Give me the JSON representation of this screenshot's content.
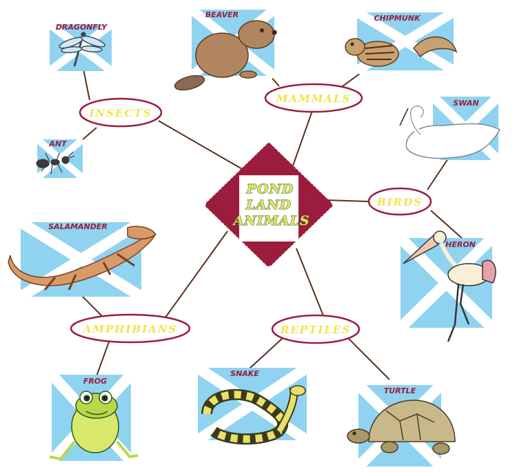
{
  "center": {
    "lines": [
      "POND",
      "LAND",
      "ANIMALS"
    ]
  },
  "categories": {
    "insects": "INSECTS",
    "mammals": "MAMMALS",
    "birds": "BIRDS",
    "amphibians": "AMPHIBIANS",
    "reptiles": "REPTILES"
  },
  "animals": {
    "dragonfly": "DRAGONFLY",
    "ant": "ANT",
    "beaver": "BEAVER",
    "chipmunk": "CHIPMUNK",
    "swan": "SWAN",
    "heron": "HERON",
    "salamander": "SALAMANDER",
    "frog": "FROG",
    "snake": "SNAKE",
    "turtle": "TURTLE"
  },
  "colors": {
    "tile_blue": "#8fd3f0",
    "tile_cross": "#ffffff",
    "maroon": "#9b1c3c",
    "category_text": "#f2e44a",
    "line": "#5a2e1a"
  }
}
